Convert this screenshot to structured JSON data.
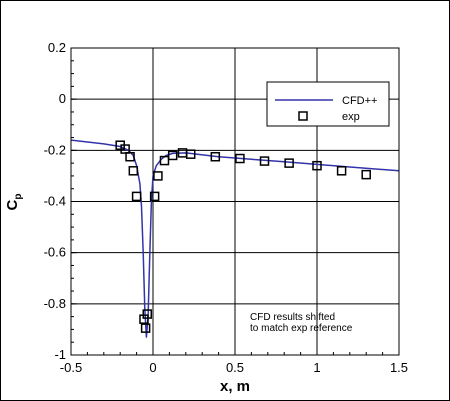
{
  "chart_data": {
    "type": "line",
    "xlabel": "x, m",
    "ylabel": "C",
    "ylabel_sub": "p",
    "xlim": [
      -0.5,
      1.5
    ],
    "ylim": [
      -1,
      0.2
    ],
    "xticks": [
      -0.5,
      0,
      0.5,
      1,
      1.5
    ],
    "xtick_labels": [
      "-0.5",
      "0",
      "0.5",
      "1",
      "1.5"
    ],
    "yticks": [
      0.2,
      0,
      -0.2,
      -0.4,
      -0.6,
      -0.8,
      -1
    ],
    "ytick_labels": [
      "0.2",
      "0",
      "-0.2",
      "-0.4",
      "-0.6",
      "-0.8",
      "-1"
    ],
    "grid": true,
    "legend_position": "top-right",
    "annotation": [
      "CFD results shifted",
      "to match exp reference"
    ],
    "series": [
      {
        "name": "CFD++",
        "style": "line",
        "color": "#3333aa",
        "x": [
          -0.5,
          -0.3,
          -0.2,
          -0.15,
          -0.12,
          -0.1,
          -0.08,
          -0.07,
          -0.06,
          -0.05,
          -0.04,
          -0.03,
          -0.02,
          -0.01,
          0.0,
          0.02,
          0.05,
          0.08,
          0.12,
          0.2,
          0.4,
          0.6,
          0.8,
          1.0,
          1.2,
          1.5
        ],
        "y": [
          -0.16,
          -0.175,
          -0.185,
          -0.2,
          -0.22,
          -0.26,
          -0.33,
          -0.42,
          -0.6,
          -0.82,
          -0.93,
          -0.85,
          -0.62,
          -0.4,
          -0.3,
          -0.26,
          -0.235,
          -0.22,
          -0.212,
          -0.21,
          -0.225,
          -0.235,
          -0.245,
          -0.255,
          -0.265,
          -0.28
        ]
      },
      {
        "name": "exp",
        "style": "square-markers",
        "color": "#000000",
        "x": [
          -0.2,
          -0.17,
          -0.14,
          -0.12,
          -0.1,
          -0.055,
          -0.045,
          -0.035,
          0.01,
          0.03,
          0.07,
          0.12,
          0.18,
          0.23,
          0.38,
          0.53,
          0.68,
          0.83,
          1.0,
          1.15,
          1.3
        ],
        "y": [
          -0.18,
          -0.195,
          -0.225,
          -0.28,
          -0.38,
          -0.86,
          -0.895,
          -0.84,
          -0.38,
          -0.3,
          -0.24,
          -0.22,
          -0.21,
          -0.215,
          -0.225,
          -0.232,
          -0.242,
          -0.25,
          -0.26,
          -0.28,
          -0.295
        ]
      }
    ]
  }
}
